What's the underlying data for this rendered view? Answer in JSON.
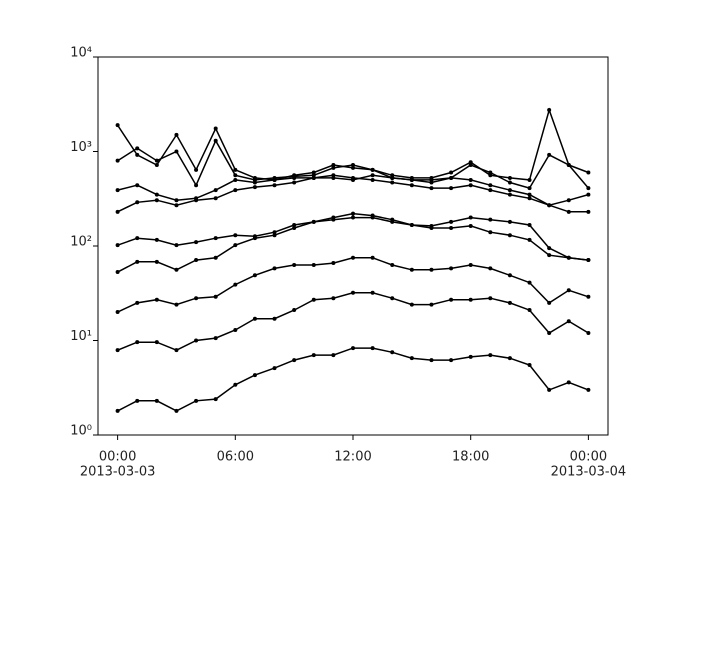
{
  "chart_data": {
    "type": "line",
    "log_y": true,
    "color": "#000000",
    "x": [
      "2013-03-03 00:00",
      "2013-03-03 01:00",
      "2013-03-03 02:00",
      "2013-03-03 03:00",
      "2013-03-03 04:00",
      "2013-03-03 05:00",
      "2013-03-03 06:00",
      "2013-03-03 07:00",
      "2013-03-03 08:00",
      "2013-03-03 09:00",
      "2013-03-03 10:00",
      "2013-03-03 11:00",
      "2013-03-03 12:00",
      "2013-03-03 13:00",
      "2013-03-03 14:00",
      "2013-03-03 15:00",
      "2013-03-03 16:00",
      "2013-03-03 17:00",
      "2013-03-03 18:00",
      "2013-03-03 19:00",
      "2013-03-03 20:00",
      "2013-03-03 21:00",
      "2013-03-03 22:00",
      "2013-03-03 23:00",
      "2013-03-04 00:00"
    ],
    "series": [
      {
        "color": "#000000",
        "values": [
          1.8,
          2.3,
          2.3,
          1.8,
          2.3,
          2.4,
          3.4,
          4.3,
          5.1,
          6.2,
          7,
          7,
          8.3,
          8.3,
          7.5,
          6.5,
          6.2,
          6.2,
          6.7,
          7,
          6.5,
          5.5,
          3,
          3.6,
          3
        ]
      },
      {
        "color": "#000000",
        "values": [
          7.9,
          9.6,
          9.6,
          7.9,
          10,
          10.6,
          12.9,
          17,
          17,
          21,
          27,
          28,
          32,
          32,
          28,
          24,
          24,
          27,
          27,
          28,
          25,
          21,
          12,
          16,
          12
        ]
      },
      {
        "color": "#000000",
        "values": [
          20,
          25,
          27,
          24,
          28,
          29,
          39,
          49,
          58,
          63,
          63,
          66,
          75,
          75,
          63,
          56,
          56,
          58,
          63,
          58,
          49,
          41,
          25,
          34,
          29
        ]
      },
      {
        "color": "#000000",
        "values": [
          53,
          68,
          68,
          56,
          71,
          75,
          102,
          121,
          130,
          155,
          180,
          190,
          200,
          200,
          180,
          167,
          155,
          155,
          163,
          140,
          130,
          116,
          80,
          75,
          71
        ]
      },
      {
        "color": "#000000",
        "values": [
          102,
          121,
          116,
          102,
          110,
          121,
          130,
          127,
          140,
          167,
          180,
          200,
          220,
          210,
          190,
          167,
          163,
          180,
          200,
          190,
          180,
          167,
          95,
          75,
          71
        ]
      },
      {
        "color": "#000000",
        "values": [
          230,
          290,
          305,
          270,
          305,
          320,
          390,
          420,
          440,
          470,
          525,
          560,
          525,
          500,
          470,
          440,
          410,
          410,
          440,
          390,
          350,
          320,
          270,
          230,
          230
        ]
      },
      {
        "color": "#000000",
        "values": [
          390,
          440,
          350,
          305,
          320,
          390,
          500,
          470,
          500,
          525,
          525,
          525,
          500,
          560,
          525,
          500,
          500,
          525,
          500,
          440,
          390,
          350,
          270,
          305,
          350
        ]
      },
      {
        "color": "#000000",
        "values": [
          1900,
          920,
          720,
          1500,
          640,
          1750,
          640,
          525,
          500,
          560,
          600,
          720,
          670,
          640,
          560,
          525,
          525,
          600,
          770,
          560,
          525,
          500,
          2750,
          720,
          600
        ]
      },
      {
        "color": "#000000",
        "values": [
          800,
          1080,
          800,
          1000,
          440,
          1300,
          560,
          500,
          525,
          545,
          560,
          670,
          720,
          640,
          525,
          500,
          470,
          525,
          720,
          600,
          470,
          410,
          920,
          720,
          410
        ]
      }
    ],
    "xlim": [
      "2013-03-02 23:00",
      "2013-03-04 01:00"
    ],
    "xticks": [
      {
        "value": "2013-03-03 00:00",
        "label": "00:00"
      },
      {
        "value": "2013-03-03 06:00",
        "label": "06:00"
      },
      {
        "value": "2013-03-03 12:00",
        "label": "12:00"
      },
      {
        "value": "2013-03-03 18:00",
        "label": "18:00"
      },
      {
        "value": "2013-03-04 00:00",
        "label": "00:00"
      }
    ],
    "x_date_labels": [
      {
        "value": "2013-03-03 00:00",
        "label": "2013-03-03"
      },
      {
        "value": "2013-03-04 00:00",
        "label": "2013-03-04"
      }
    ],
    "ylim": [
      1,
      10000
    ],
    "yticks": [
      {
        "value": 1,
        "label": "10⁰"
      },
      {
        "value": 10,
        "label": "10¹"
      },
      {
        "value": 100,
        "label": "10²"
      },
      {
        "value": 1000,
        "label": "10³"
      },
      {
        "value": 10000,
        "label": "10⁴"
      }
    ]
  }
}
